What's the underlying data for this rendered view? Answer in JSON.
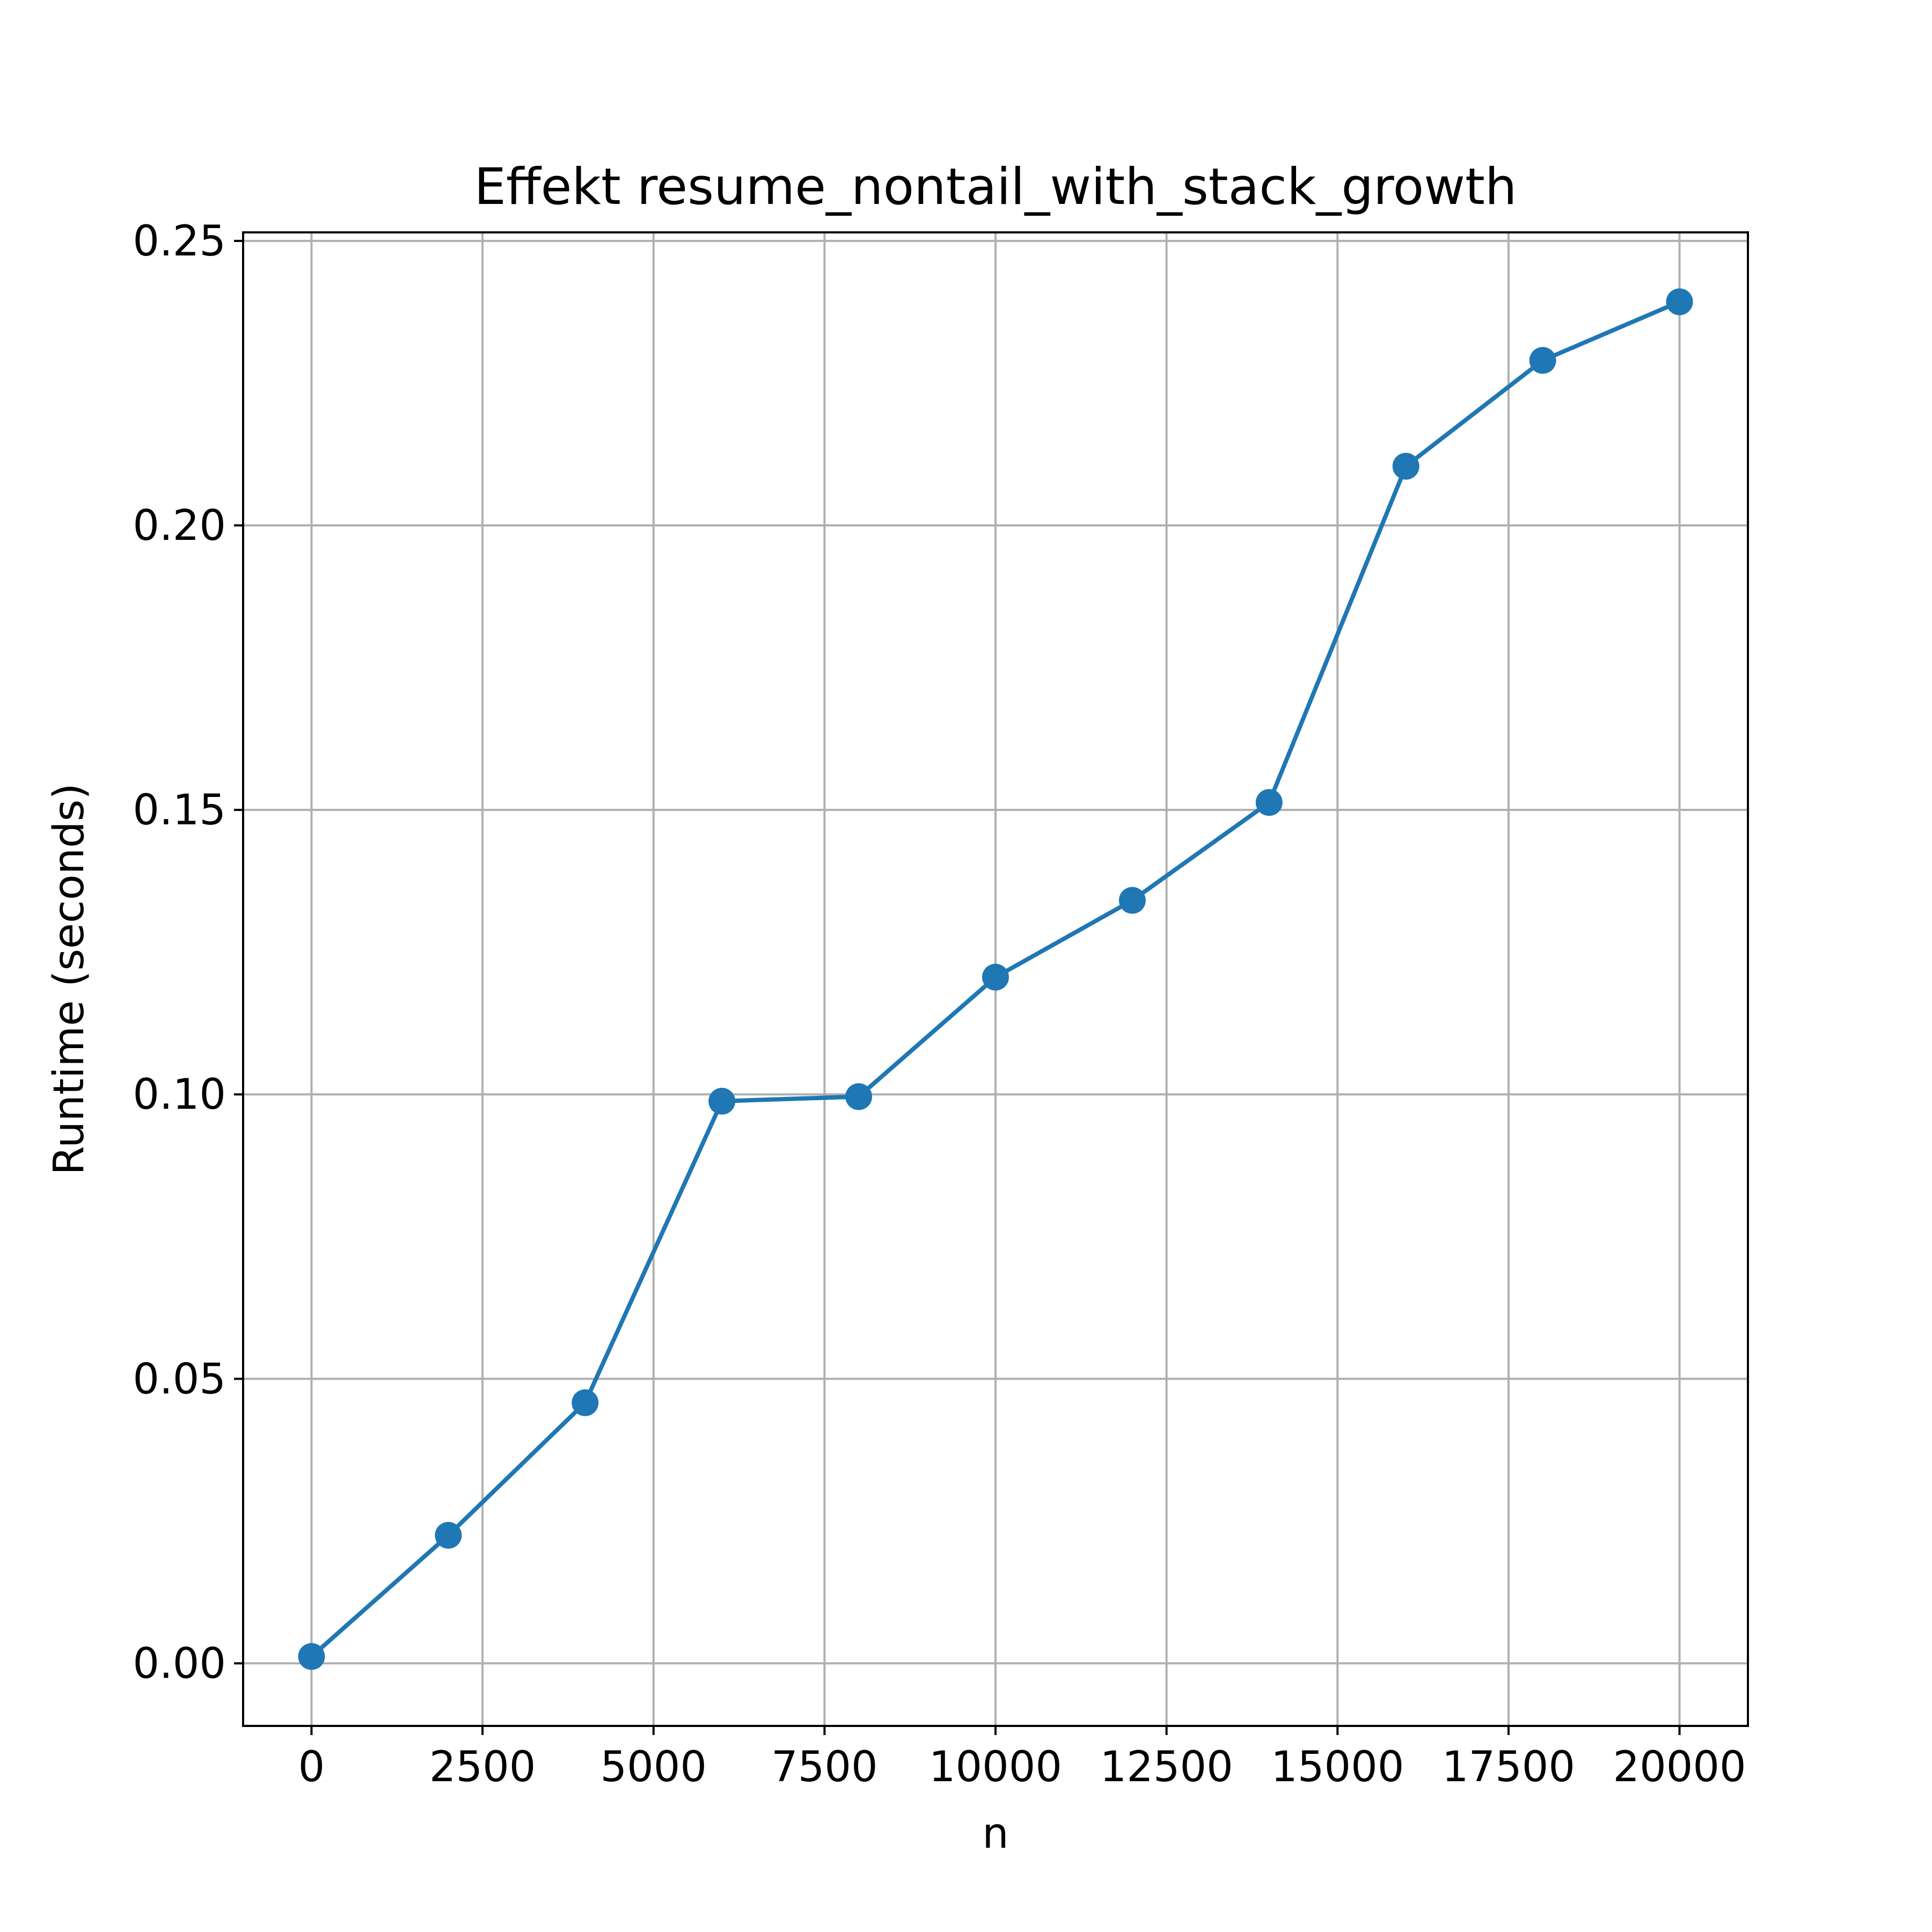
{
  "chart_data": {
    "type": "line",
    "title": "Effekt resume_nontail_with_stack_growth",
    "xlabel": "n",
    "ylabel": "Runtime (seconds)",
    "xlim": [
      -1000,
      21000
    ],
    "ylim": [
      -0.011,
      0.2515
    ],
    "x_ticks": [
      0,
      2500,
      5000,
      7500,
      10000,
      12500,
      15000,
      17500,
      20000
    ],
    "y_ticks": [
      0.0,
      0.05,
      0.1,
      0.15,
      0.2,
      0.25
    ],
    "grid": true,
    "legend": "none",
    "series": [
      {
        "color": "#1f77b4",
        "marker": "circle",
        "x": [
          0,
          2000,
          4000,
          6000,
          8000,
          10000,
          12000,
          14000,
          16000,
          18000,
          20000
        ],
        "y": [
          0.0012,
          0.0225,
          0.0458,
          0.0988,
          0.0996,
          0.1206,
          0.1341,
          0.1513,
          0.2104,
          0.229,
          0.2393
        ]
      }
    ]
  }
}
